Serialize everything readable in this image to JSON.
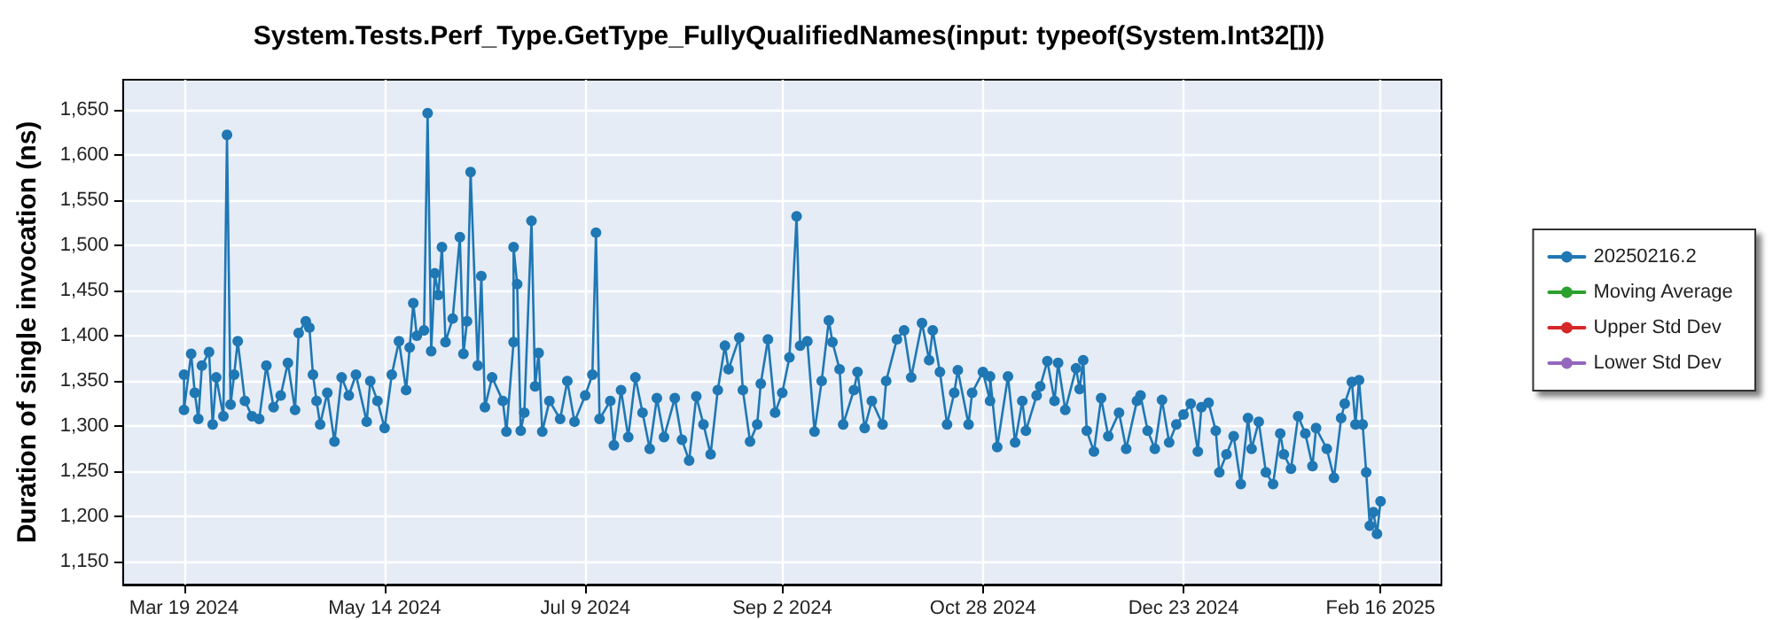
{
  "chart_data": {
    "type": "line",
    "title": "System.Tests.Perf_Type.GetType_FullyQualifiedNames(input: typeof(System.Int32[]))",
    "ylabel": "Duration of single invocation (ns)",
    "x": [
      "2024-03-19",
      "2024-03-19",
      "2024-03-21",
      "2024-03-22",
      "2024-03-23",
      "2024-03-24",
      "2024-03-26",
      "2024-03-27",
      "2024-03-28",
      "2024-03-30",
      "2024-03-31",
      "2024-04-01",
      "2024-04-02",
      "2024-04-03",
      "2024-04-05",
      "2024-04-07",
      "2024-04-09",
      "2024-04-11",
      "2024-04-13",
      "2024-04-15",
      "2024-04-17",
      "2024-04-19",
      "2024-04-20",
      "2024-04-22",
      "2024-04-23",
      "2024-04-24",
      "2024-04-25",
      "2024-04-26",
      "2024-04-28",
      "2024-04-30",
      "2024-05-02",
      "2024-05-04",
      "2024-05-06",
      "2024-05-09",
      "2024-05-10",
      "2024-05-12",
      "2024-05-14",
      "2024-05-16",
      "2024-05-18",
      "2024-05-20",
      "2024-05-21",
      "2024-05-22",
      "2024-05-23",
      "2024-05-25",
      "2024-05-26",
      "2024-05-27",
      "2024-05-28",
      "2024-05-29",
      "2024-05-30",
      "2024-05-31",
      "2024-06-02",
      "2024-06-04",
      "2024-06-05",
      "2024-06-06",
      "2024-06-07",
      "2024-06-09",
      "2024-06-10",
      "2024-06-11",
      "2024-06-13",
      "2024-06-16",
      "2024-06-17",
      "2024-06-19",
      "2024-06-19",
      "2024-06-20",
      "2024-06-21",
      "2024-06-22",
      "2024-06-24",
      "2024-06-25",
      "2024-06-26",
      "2024-06-27",
      "2024-06-29",
      "2024-07-02",
      "2024-07-04",
      "2024-07-06",
      "2024-07-09",
      "2024-07-11",
      "2024-07-12",
      "2024-07-13",
      "2024-07-16",
      "2024-07-17",
      "2024-07-19",
      "2024-07-21",
      "2024-07-23",
      "2024-07-25",
      "2024-07-27",
      "2024-07-29",
      "2024-07-31",
      "2024-08-03",
      "2024-08-05",
      "2024-08-07",
      "2024-08-09",
      "2024-08-11",
      "2024-08-13",
      "2024-08-15",
      "2024-08-17",
      "2024-08-18",
      "2024-08-21",
      "2024-08-22",
      "2024-08-24",
      "2024-08-26",
      "2024-08-27",
      "2024-08-29",
      "2024-08-31",
      "2024-09-02",
      "2024-09-04",
      "2024-09-06",
      "2024-09-07",
      "2024-09-09",
      "2024-09-11",
      "2024-09-13",
      "2024-09-15",
      "2024-09-16",
      "2024-09-18",
      "2024-09-19",
      "2024-09-22",
      "2024-09-23",
      "2024-09-25",
      "2024-09-27",
      "2024-09-30",
      "2024-10-01",
      "2024-10-04",
      "2024-10-06",
      "2024-10-08",
      "2024-10-11",
      "2024-10-13",
      "2024-10-14",
      "2024-10-16",
      "2024-10-18",
      "2024-10-20",
      "2024-10-21",
      "2024-10-24",
      "2024-10-25",
      "2024-10-28",
      "2024-10-30",
      "2024-10-30",
      "2024-11-01",
      "2024-11-04",
      "2024-11-06",
      "2024-11-08",
      "2024-11-09",
      "2024-11-12",
      "2024-11-13",
      "2024-11-15",
      "2024-11-17",
      "2024-11-18",
      "2024-11-20",
      "2024-11-23",
      "2024-11-24",
      "2024-11-25",
      "2024-11-26",
      "2024-11-28",
      "2024-11-30",
      "2024-12-02",
      "2024-12-05",
      "2024-12-07",
      "2024-12-10",
      "2024-12-11",
      "2024-12-13",
      "2024-12-15",
      "2024-12-17",
      "2024-12-19",
      "2024-12-21",
      "2024-12-23",
      "2024-12-25",
      "2024-12-27",
      "2024-12-28",
      "2024-12-30",
      "2025-01-01",
      "2025-01-02",
      "2025-01-04",
      "2025-01-06",
      "2025-01-08",
      "2025-01-10",
      "2025-01-11",
      "2025-01-13",
      "2025-01-15",
      "2025-01-17",
      "2025-01-19",
      "2025-01-20",
      "2025-01-22",
      "2025-01-24",
      "2025-01-26",
      "2025-01-28",
      "2025-01-29",
      "2025-02-01",
      "2025-02-03",
      "2025-02-05",
      "2025-02-06",
      "2025-02-08",
      "2025-02-09",
      "2025-02-10",
      "2025-02-11",
      "2025-02-12",
      "2025-02-13",
      "2025-02-14",
      "2025-02-15",
      "2025-02-16"
    ],
    "series": [
      {
        "name": "20250216.2",
        "color": "#1f77b4",
        "values": [
          1357,
          1318,
          1380,
          1337,
          1308,
          1367,
          1382,
          1302,
          1354,
          1311,
          1622,
          1324,
          1357,
          1394,
          1328,
          1311,
          1308,
          1367,
          1321,
          1334,
          1370,
          1318,
          1403,
          1416,
          1409,
          1357,
          1328,
          1302,
          1337,
          1283,
          1354,
          1334,
          1357,
          1305,
          1350,
          1328,
          1298,
          1357,
          1394,
          1340,
          1387,
          1436,
          1400,
          1406,
          1646,
          1383,
          1469,
          1445,
          1498,
          1393,
          1419,
          1509,
          1380,
          1416,
          1581,
          1367,
          1466,
          1321,
          1354,
          1328,
          1294,
          1393,
          1498,
          1457,
          1295,
          1315,
          1527,
          1344,
          1381,
          1294,
          1328,
          1308,
          1350,
          1305,
          1334,
          1357,
          1514,
          1308,
          1328,
          1279,
          1340,
          1288,
          1354,
          1315,
          1275,
          1331,
          1288,
          1331,
          1285,
          1262,
          1333,
          1302,
          1269,
          1340,
          1389,
          1363,
          1398,
          1340,
          1283,
          1302,
          1347,
          1396,
          1315,
          1337,
          1376,
          1532,
          1389,
          1394,
          1294,
          1350,
          1417,
          1393,
          1363,
          1302,
          1340,
          1360,
          1298,
          1328,
          1302,
          1350,
          1396,
          1406,
          1354,
          1414,
          1373,
          1406,
          1360,
          1302,
          1337,
          1362,
          1302,
          1337,
          1360,
          1328,
          1355,
          1277,
          1355,
          1282,
          1328,
          1295,
          1334,
          1344,
          1372,
          1328,
          1370,
          1318,
          1364,
          1341,
          1373,
          1295,
          1272,
          1331,
          1289,
          1315,
          1275,
          1328,
          1334,
          1295,
          1275,
          1329,
          1282,
          1302,
          1313,
          1325,
          1272,
          1321,
          1326,
          1295,
          1249,
          1269,
          1289,
          1236,
          1309,
          1275,
          1305,
          1249,
          1236,
          1292,
          1269,
          1253,
          1311,
          1292,
          1256,
          1298,
          1275,
          1243,
          1309,
          1325,
          1349,
          1302,
          1351,
          1302,
          1249,
          1190,
          1205,
          1181,
          1217
        ]
      },
      {
        "name": "Moving Average",
        "color": "#2ca02c",
        "values": [
          null,
          null,
          null,
          null,
          null,
          null,
          null,
          null,
          null,
          null,
          null,
          null,
          null,
          null,
          null,
          null,
          null,
          null,
          null,
          null,
          null,
          null,
          null,
          null,
          null,
          null,
          null,
          null,
          null,
          null,
          null,
          null,
          null,
          null,
          null,
          null,
          null,
          null,
          null,
          null,
          null,
          null,
          null,
          null,
          null,
          null,
          null,
          null,
          null,
          null,
          null,
          null,
          null,
          null,
          null,
          null,
          null,
          null,
          null,
          null,
          null,
          null,
          null,
          null,
          null,
          null,
          null,
          null,
          null,
          null,
          null,
          null,
          null,
          null,
          null,
          null,
          null,
          null,
          null,
          null,
          null,
          null,
          null,
          null,
          null,
          null,
          null,
          null,
          null,
          null,
          null,
          null,
          null,
          null,
          null,
          null,
          null,
          null,
          null,
          null,
          null,
          null,
          null,
          null,
          null,
          null,
          null,
          null,
          null,
          null,
          null,
          null,
          null,
          null,
          null,
          null,
          null,
          null,
          null,
          null,
          null,
          null,
          null,
          null,
          null,
          null,
          null,
          null,
          null,
          null,
          null,
          null,
          null,
          null,
          null,
          null,
          null,
          null,
          null,
          null,
          null,
          null,
          null,
          null,
          null,
          null,
          null,
          null,
          null,
          null,
          null,
          null,
          null,
          null,
          null,
          null,
          null,
          null,
          null,
          null,
          null,
          null,
          null,
          null,
          null,
          null,
          null,
          null,
          null,
          null,
          null,
          null,
          null,
          null,
          null,
          null,
          null,
          null,
          null,
          null,
          null,
          null,
          null,
          null,
          null,
          null,
          null,
          null,
          null,
          null,
          null,
          null,
          null,
          null,
          null,
          null,
          null
        ]
      },
      {
        "name": "Upper Std Dev",
        "color": "#d62728",
        "values": [
          null,
          null,
          null,
          null,
          null,
          null,
          null,
          null,
          null,
          null,
          null,
          null,
          null,
          null,
          null,
          null,
          null,
          null,
          null,
          null,
          null,
          null,
          null,
          null,
          null,
          null,
          null,
          null,
          null,
          null,
          null,
          null,
          null,
          null,
          null,
          null,
          null,
          null,
          null,
          null,
          null,
          null,
          null,
          null,
          null,
          null,
          null,
          null,
          null,
          null,
          null,
          null,
          null,
          null,
          null,
          null,
          null,
          null,
          null,
          null,
          null,
          null,
          null,
          null,
          null,
          null,
          null,
          null,
          null,
          null,
          null,
          null,
          null,
          null,
          null,
          null,
          null,
          null,
          null,
          null,
          null,
          null,
          null,
          null,
          null,
          null,
          null,
          null,
          null,
          null,
          null,
          null,
          null,
          null,
          null,
          null,
          null,
          null,
          null,
          null,
          null,
          null,
          null,
          null,
          null,
          null,
          null,
          null,
          null,
          null,
          null,
          null,
          null,
          null,
          null,
          null,
          null,
          null,
          null,
          null,
          null,
          null,
          null,
          null,
          null,
          null,
          null,
          null,
          null,
          null,
          null,
          null,
          null,
          null,
          null,
          null,
          null,
          null,
          null,
          null,
          null,
          null,
          null,
          null,
          null,
          null,
          null,
          null,
          null,
          null,
          null,
          null,
          null,
          null,
          null,
          null,
          null,
          null,
          null,
          null,
          null,
          null,
          null,
          null,
          null,
          null,
          null,
          null,
          null,
          null,
          null,
          null,
          null,
          null,
          null,
          null,
          null,
          null,
          null,
          null,
          null,
          null,
          null,
          null,
          null,
          null,
          null,
          null,
          null,
          null,
          null,
          null,
          null,
          null,
          null,
          null,
          null
        ]
      },
      {
        "name": "Lower Std Dev",
        "color": "#9467bd",
        "values": [
          null,
          null,
          null,
          null,
          null,
          null,
          null,
          null,
          null,
          null,
          null,
          null,
          null,
          null,
          null,
          null,
          null,
          null,
          null,
          null,
          null,
          null,
          null,
          null,
          null,
          null,
          null,
          null,
          null,
          null,
          null,
          null,
          null,
          null,
          null,
          null,
          null,
          null,
          null,
          null,
          null,
          null,
          null,
          null,
          null,
          null,
          null,
          null,
          null,
          null,
          null,
          null,
          null,
          null,
          null,
          null,
          null,
          null,
          null,
          null,
          null,
          null,
          null,
          null,
          null,
          null,
          null,
          null,
          null,
          null,
          null,
          null,
          null,
          null,
          null,
          null,
          null,
          null,
          null,
          null,
          null,
          null,
          null,
          null,
          null,
          null,
          null,
          null,
          null,
          null,
          null,
          null,
          null,
          null,
          null,
          null,
          null,
          null,
          null,
          null,
          null,
          null,
          null,
          null,
          null,
          null,
          null,
          null,
          null,
          null,
          null,
          null,
          null,
          null,
          null,
          null,
          null,
          null,
          null,
          null,
          null,
          null,
          null,
          null,
          null,
          null,
          null,
          null,
          null,
          null,
          null,
          null,
          null,
          null,
          null,
          null,
          null,
          null,
          null,
          null,
          null,
          null,
          null,
          null,
          null,
          null,
          null,
          null,
          null,
          null,
          null,
          null,
          null,
          null,
          null,
          null,
          null,
          null,
          null,
          null,
          null,
          null,
          null,
          null,
          null,
          null,
          null,
          null,
          null,
          null,
          null,
          null,
          null,
          null,
          null,
          null,
          null,
          null,
          null,
          null,
          null,
          null,
          null,
          null,
          null,
          null,
          null,
          null,
          null,
          null,
          null,
          null,
          null,
          null,
          null,
          null,
          null
        ]
      }
    ],
    "xlim": [
      "2024-03-02",
      "2025-03-05"
    ],
    "xticks": [
      {
        "value": "2024-03-19",
        "label": "Mar 19 2024"
      },
      {
        "value": "2024-05-14",
        "label": "May 14 2024"
      },
      {
        "value": "2024-07-09",
        "label": "Jul 9 2024"
      },
      {
        "value": "2024-09-02",
        "label": "Sep 2 2024"
      },
      {
        "value": "2024-10-28",
        "label": "Oct 28 2024"
      },
      {
        "value": "2024-12-23",
        "label": "Dec 23 2024"
      },
      {
        "value": "2025-02-16",
        "label": "Feb 16 2025"
      }
    ],
    "ylim": [
      1125,
      1683
    ],
    "yticks": [
      {
        "value": 1150,
        "label": "1,150"
      },
      {
        "value": 1200,
        "label": "1,200"
      },
      {
        "value": 1250,
        "label": "1,250"
      },
      {
        "value": 1300,
        "label": "1,300"
      },
      {
        "value": 1350,
        "label": "1,350"
      },
      {
        "value": 1400,
        "label": "1,400"
      },
      {
        "value": 1450,
        "label": "1,450"
      },
      {
        "value": 1500,
        "label": "1,500"
      },
      {
        "value": 1550,
        "label": "1,550"
      },
      {
        "value": 1600,
        "label": "1,600"
      },
      {
        "value": 1650,
        "label": "1,650"
      }
    ],
    "grid": true,
    "legend": "right",
    "marker": "circle",
    "line_style": "solid"
  }
}
